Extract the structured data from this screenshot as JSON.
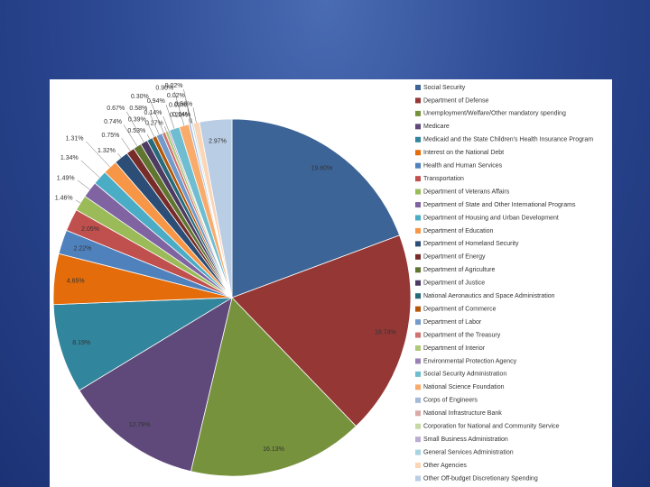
{
  "chart_data": {
    "type": "pie",
    "categories": [
      "Social Security",
      "Department of Defense",
      "Unemployment/Welfare/Other mandatory spending",
      "Medicare",
      "Medicaid and the State Children's Health Insurance Program",
      "Interest on the National Debt",
      "Health and Human Services",
      "Transportation",
      "Department of Veterans Affairs",
      "Department of State and Other International Programs",
      "Department of Housing and Urban Development",
      "Department of Education",
      "Department of Homeland Security",
      "Department of Energy",
      "Department of Agriculture",
      "Department of Justice",
      "National Aeronautics and Space Administration",
      "Department of Commerce",
      "Department of Labor",
      "Department of the Treasury",
      "Department of Interior",
      "Environmental Protection Agency",
      "Social Security Administration",
      "National Science Foundation",
      "Corps of Engineers",
      "National Infrastructure Bank",
      "Corporation for National and Community Service",
      "Small Business Administration",
      "General Services Administration",
      "Other Agencies",
      "Other Off-budget Discretionary Spending"
    ],
    "values": [
      19.6,
      18.74,
      16.13,
      12.79,
      8.19,
      4.65,
      2.22,
      2.05,
      1.46,
      1.49,
      1.34,
      1.31,
      1.32,
      0.75,
      0.74,
      0.67,
      0.53,
      0.39,
      0.58,
      0.3,
      0.27,
      0.14,
      0.94,
      0.9,
      0.2,
      0.03,
      0.02,
      0.02,
      0.14,
      0.56,
      2.97
    ],
    "value_labels": [
      "19.60%",
      "18.74%",
      "16.13%",
      "12.79%",
      "8.19%",
      "4.65%",
      "2.22%",
      "2.05%",
      "1.46%",
      "1.49%",
      "1.34%",
      "1.31%",
      "1.32%",
      "0.75%",
      "0.74%",
      "0.67%",
      "0.53%",
      "0.39%",
      "0.58%",
      "0.30%",
      "0.27%",
      "0.14%",
      "0.94%",
      "0.90%",
      "0.20%",
      "0.03%",
      "0.02%",
      "0.02%",
      "0.14%",
      "0.56%",
      "2.97%"
    ],
    "colors": [
      "#3c6496",
      "#953735",
      "#76923c",
      "#5f497a",
      "#31859c",
      "#e46c0a",
      "#4f81bd",
      "#c0504d",
      "#9bbb59",
      "#8064a2",
      "#4bacc6",
      "#f79646",
      "#2c4d75",
      "#772c2a",
      "#5f7530",
      "#4d3b62",
      "#276a7c",
      "#b65708",
      "#729aca",
      "#cd7371",
      "#afc97a",
      "#9983b5",
      "#6fbdd1",
      "#f9ab6b",
      "#a5b9d9",
      "#dba9a8",
      "#c6d9a5",
      "#b9add0",
      "#a7d4e0",
      "#fcd5b5",
      "#b9cde5"
    ]
  }
}
